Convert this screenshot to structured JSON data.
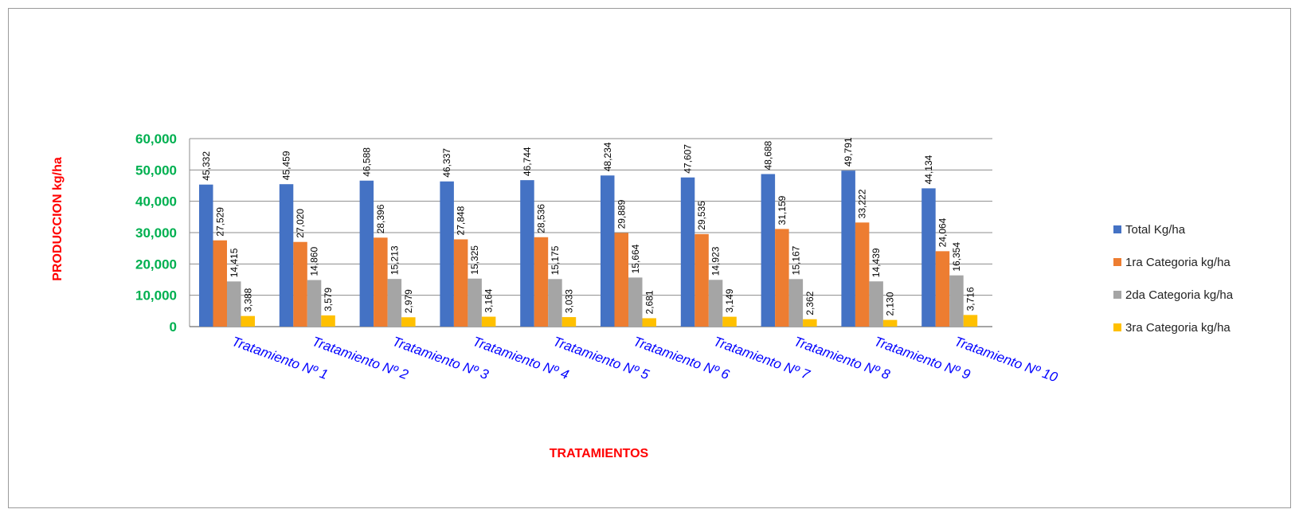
{
  "chart_data": {
    "type": "bar",
    "title": "",
    "xlabel": "TRATAMIENTOS",
    "ylabel": "PRODUCCION kg/ha",
    "ylim": [
      0,
      60000
    ],
    "yticks": [
      0,
      10000,
      20000,
      30000,
      40000,
      50000,
      60000
    ],
    "ytick_labels": [
      "0",
      "10,000",
      "20,000",
      "30,000",
      "40,000",
      "50,000",
      "60,000"
    ],
    "grid": true,
    "legend_position": "right",
    "categories": [
      "Tratamiento Nº 1",
      "Tratamiento Nº 2",
      "Tratamiento Nº 3",
      "Tratamiento Nº 4",
      "Tratamiento Nº 5",
      "Tratamiento Nº 6",
      "Tratamiento Nº 7",
      "Tratamiento Nº 8",
      "Tratamiento Nº 9",
      "Tratamiento Nº 10"
    ],
    "series": [
      {
        "name": "Total Kg/ha",
        "color": "#4472c4",
        "values": [
          45332,
          45459,
          46588,
          46337,
          46744,
          48234,
          47607,
          48688,
          49791,
          44134
        ],
        "labels": [
          "45,332",
          "45,459",
          "46,588",
          "46,337",
          "46,744",
          "48,234",
          "47,607",
          "48,688",
          "49,791",
          "44,134"
        ]
      },
      {
        "name": "1ra Categoria kg/ha",
        "color": "#ed7d31",
        "values": [
          27529,
          27020,
          28396,
          27848,
          28536,
          29889,
          29535,
          31159,
          33222,
          24064
        ],
        "labels": [
          "27,529",
          "27,020",
          "28,396",
          "27,848",
          "28,536",
          "29,889",
          "29,535",
          "31,159",
          "33,222",
          "24,064"
        ]
      },
      {
        "name": "2da Categoria kg/ha",
        "color": "#a5a5a5",
        "values": [
          14415,
          14860,
          15213,
          15325,
          15175,
          15664,
          14923,
          15167,
          14439,
          16354
        ],
        "labels": [
          "14,415",
          "14,860",
          "15,213",
          "15,325",
          "15,175",
          "15,664",
          "14,923",
          "15,167",
          "14,439",
          "16,354"
        ]
      },
      {
        "name": "3ra Categoria kg/ha",
        "color": "#ffc000",
        "values": [
          3388,
          3579,
          2979,
          3164,
          3033,
          2681,
          3149,
          2362,
          2130,
          3716
        ],
        "labels": [
          "3,388",
          "3,579",
          "2,979",
          "3,164",
          "3,033",
          "2,681",
          "3,149",
          "2,362",
          "2,130",
          "3,716"
        ]
      }
    ],
    "colors": {
      "ytick": "#00b050",
      "xtick": "#0000ff",
      "axis_title": "#ff0000",
      "grid": "#8c8c8c",
      "axis": "#8c8c8c"
    }
  }
}
